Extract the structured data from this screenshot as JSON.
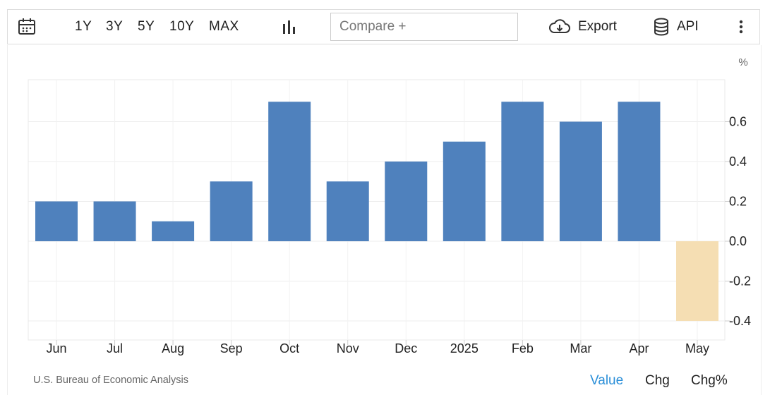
{
  "toolbar": {
    "calendar_icon": "calendar-icon",
    "ranges": [
      "1Y",
      "3Y",
      "5Y",
      "10Y",
      "MAX"
    ],
    "chart_type_icon": "bar-chart-icon",
    "compare_placeholder": "Compare +",
    "export_label": "Export",
    "api_label": "API",
    "more_icon": "vertical-dots-icon"
  },
  "colors": {
    "positive": "#4f81bd",
    "negative": "#f5deb3",
    "grid": "#ececec"
  },
  "chart_data": {
    "type": "bar",
    "unit_label": "%",
    "categories": [
      "Jun",
      "Jul",
      "Aug",
      "Sep",
      "Oct",
      "Nov",
      "Dec",
      "2025",
      "Feb",
      "Mar",
      "Apr",
      "May"
    ],
    "values": [
      0.2,
      0.2,
      0.1,
      0.3,
      0.7,
      0.3,
      0.4,
      0.5,
      0.7,
      0.6,
      0.7,
      -0.4
    ],
    "yticks": [
      "0.6",
      "0.4",
      "0.2",
      "0.0",
      "-0.2",
      "-0.4"
    ],
    "ytick_values": [
      0.6,
      0.4,
      0.2,
      0.0,
      -0.2,
      -0.4
    ],
    "ylim": [
      -0.5,
      0.8
    ],
    "grid": true,
    "yaxis_position": "right"
  },
  "footer": {
    "source": "U.S. Bureau of Economic Analysis",
    "modes": [
      "Value",
      "Chg",
      "Chg%"
    ],
    "active_mode": "Value"
  }
}
